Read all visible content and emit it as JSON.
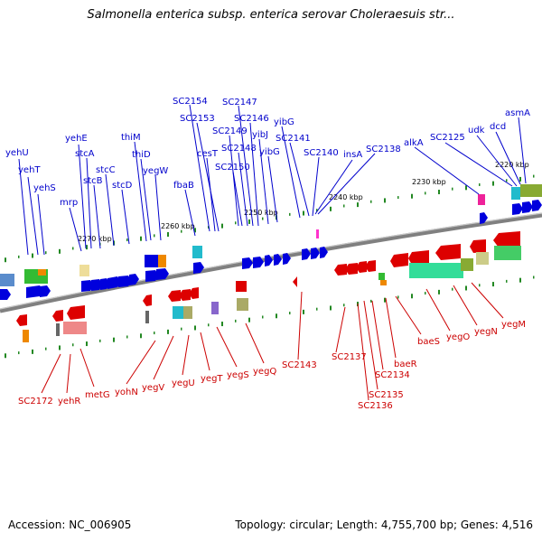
{
  "title": "Salmonella enterica subsp. enterica serovar Choleraesuis str...",
  "footer": {
    "accession": "Accession: NC_006905",
    "summary": "Topology: circular; Length: 4,755,700 bp; Genes: 4,516"
  },
  "scale_labels": [
    "2220 kbp",
    "2230 kbp",
    "2240 kbp",
    "2250 kbp",
    "2260 kbp",
    "2270 kbp"
  ],
  "genes_top": [
    "yehU",
    "yehT",
    "yehS",
    "mrp",
    "yehE",
    "stcA",
    "stcB",
    "stcC",
    "stcD",
    "thiM",
    "thiD",
    "yegW",
    "fbaB",
    "cesT",
    "SC2154",
    "SC2153",
    "SC2147",
    "SC2146",
    "SC2149",
    "SC2148",
    "SC2150",
    "yibJ",
    "yibG",
    "yibG",
    "SC2141",
    "SC2140",
    "insA",
    "SC2138",
    "alkA",
    "SC2125",
    "udk",
    "dcd",
    "asmA"
  ],
  "genes_bottom": [
    "SC2172",
    "yehR",
    "metG",
    "yohN",
    "yegV",
    "yegU",
    "yegT",
    "yegS",
    "yegQ",
    "SC2143",
    "SC2137",
    "SC2136",
    "SC2135",
    "SC2134",
    "baeR",
    "baeS",
    "yegO",
    "yegN",
    "yegM"
  ],
  "colors": {
    "forward": "#0000dd",
    "reverse": "#dd0000",
    "backbone": "#808080"
  }
}
